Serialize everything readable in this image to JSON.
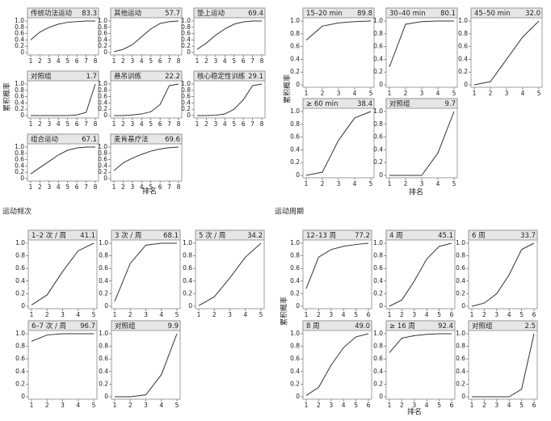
{
  "chart_data": [
    {
      "type": "line",
      "xlabel": "排名",
      "ylabel": "累积概率",
      "x": [
        1,
        2,
        3,
        4,
        5,
        6,
        7,
        8
      ],
      "xlim": [
        1,
        8
      ],
      "xticks": [
        1,
        2,
        3,
        4,
        5,
        6,
        7,
        8
      ],
      "ylim": [
        0,
        1
      ],
      "yticks": [
        0,
        0.2,
        0.4,
        0.6,
        0.8,
        {
          "value": 1,
          "label": "1.0"
        }
      ],
      "color": "#333333",
      "series": [
        {
          "name": "传统功法运动",
          "sucra": 83.3,
          "values": [
            0.4,
            0.65,
            0.8,
            0.9,
            0.96,
            0.98,
            1,
            1
          ]
        },
        {
          "name": "其他运动",
          "sucra": 57.7,
          "values": [
            0.03,
            0.1,
            0.25,
            0.5,
            0.75,
            0.92,
            0.98,
            1
          ]
        },
        {
          "name": "垫上运动",
          "sucra": 69.4,
          "values": [
            0.1,
            0.3,
            0.55,
            0.75,
            0.9,
            0.97,
            1,
            1
          ]
        },
        {
          "name": "对照组",
          "sucra": 1.7,
          "values": [
            0,
            0,
            0,
            0,
            0,
            0.02,
            0.1,
            1
          ]
        },
        {
          "name": "悬吊训练",
          "sucra": 22.2,
          "values": [
            0,
            0,
            0.02,
            0.05,
            0.12,
            0.35,
            0.95,
            1
          ]
        },
        {
          "name": "核心稳定性训练",
          "sucra": 29.1,
          "values": [
            0,
            0,
            0.01,
            0.05,
            0.2,
            0.5,
            0.95,
            1
          ]
        },
        {
          "name": "组合运动",
          "sucra": 67.1,
          "values": [
            0.15,
            0.35,
            0.55,
            0.75,
            0.9,
            0.97,
            1,
            1
          ]
        },
        {
          "name": "麦肯基疗法",
          "sucra": 69.6,
          "values": [
            0.25,
            0.5,
            0.65,
            0.77,
            0.87,
            0.94,
            0.98,
            1
          ]
        }
      ]
    },
    {
      "type": "line",
      "xlabel": "排名",
      "ylabel": "累积概率",
      "x": [
        1,
        2,
        3,
        4,
        5
      ],
      "xlim": [
        1,
        5
      ],
      "xticks": [
        1,
        2,
        3,
        4,
        5
      ],
      "ylim": [
        0,
        1
      ],
      "yticks": [
        0,
        0.2,
        0.4,
        0.6,
        0.8,
        {
          "value": 1,
          "label": "1.0"
        }
      ],
      "color": "#333333",
      "series": [
        {
          "name": "15–20 min",
          "sucra": 89.8,
          "values": [
            0.7,
            0.92,
            0.97,
            0.99,
            1
          ]
        },
        {
          "name": "30–40 min",
          "sucra": 80.1,
          "values": [
            0.28,
            0.95,
            0.99,
            1,
            1
          ]
        },
        {
          "name": "45–50 min",
          "sucra": 32,
          "sucra_label": "32.0",
          "values": [
            0,
            0.05,
            0.4,
            0.75,
            1
          ]
        },
        {
          "name": "≥ 60 min",
          "sucra": 38.4,
          "values": [
            0,
            0.05,
            0.55,
            0.9,
            1
          ]
        },
        {
          "name": "对照组",
          "sucra": 9.7,
          "values": [
            0,
            0,
            0,
            0.35,
            1
          ]
        }
      ]
    },
    {
      "type": "line",
      "title": "运动频次",
      "x": [
        1,
        2,
        3,
        4,
        5
      ],
      "xlim": [
        1,
        5
      ],
      "xticks": [
        1,
        2,
        3,
        4,
        5
      ],
      "ylim": [
        0,
        1
      ],
      "yticks": [
        0,
        0.2,
        0.4,
        0.6,
        0.8,
        {
          "value": 1,
          "label": "1.0"
        }
      ],
      "color": "#333333",
      "series": [
        {
          "name": "1–2 次 / 周",
          "sucra": 41.1,
          "values": [
            0.02,
            0.18,
            0.55,
            0.88,
            1
          ]
        },
        {
          "name": "3 次 / 周",
          "sucra": 68.1,
          "values": [
            0.08,
            0.68,
            0.97,
            1,
            1
          ]
        },
        {
          "name": "5 次 / 周",
          "sucra": 34.2,
          "values": [
            0.01,
            0.15,
            0.45,
            0.78,
            1
          ]
        },
        {
          "name": "6–7 次 / 周",
          "sucra": 96.7,
          "values": [
            0.88,
            0.98,
            1,
            1,
            1
          ]
        },
        {
          "name": "对照组",
          "sucra": 9.9,
          "values": [
            0,
            0,
            0.03,
            0.35,
            1
          ]
        }
      ]
    },
    {
      "type": "line",
      "title": "运动周期",
      "xlabel": "排名",
      "ylabel": "累积概率",
      "x": [
        1,
        2,
        3,
        4,
        5,
        6
      ],
      "xlim": [
        1,
        6
      ],
      "xticks": [
        1,
        2,
        3,
        4,
        5,
        6
      ],
      "ylim": [
        0,
        1
      ],
      "yticks": [
        0,
        0.2,
        0.4,
        0.6,
        0.8,
        {
          "value": 1,
          "label": "1.0"
        }
      ],
      "color": "#333333",
      "series": [
        {
          "name": "12–13 周",
          "sucra": 77.2,
          "values": [
            0.28,
            0.78,
            0.9,
            0.95,
            0.98,
            1
          ]
        },
        {
          "name": "4 周",
          "sucra": 45.1,
          "values": [
            0,
            0.1,
            0.4,
            0.75,
            0.95,
            1
          ]
        },
        {
          "name": "6 周",
          "sucra": 33.7,
          "values": [
            0,
            0.05,
            0.2,
            0.5,
            0.9,
            1
          ]
        },
        {
          "name": "8 周",
          "sucra": 49,
          "sucra_label": "49.0",
          "values": [
            0.02,
            0.15,
            0.5,
            0.78,
            0.95,
            1
          ]
        },
        {
          "name": "≥ 16 周",
          "sucra": 92.4,
          "values": [
            0.7,
            0.93,
            0.97,
            0.99,
            1,
            1
          ]
        },
        {
          "name": "对照组",
          "sucra": 2.5,
          "values": [
            0,
            0,
            0,
            0,
            0.12,
            1
          ]
        }
      ]
    }
  ]
}
